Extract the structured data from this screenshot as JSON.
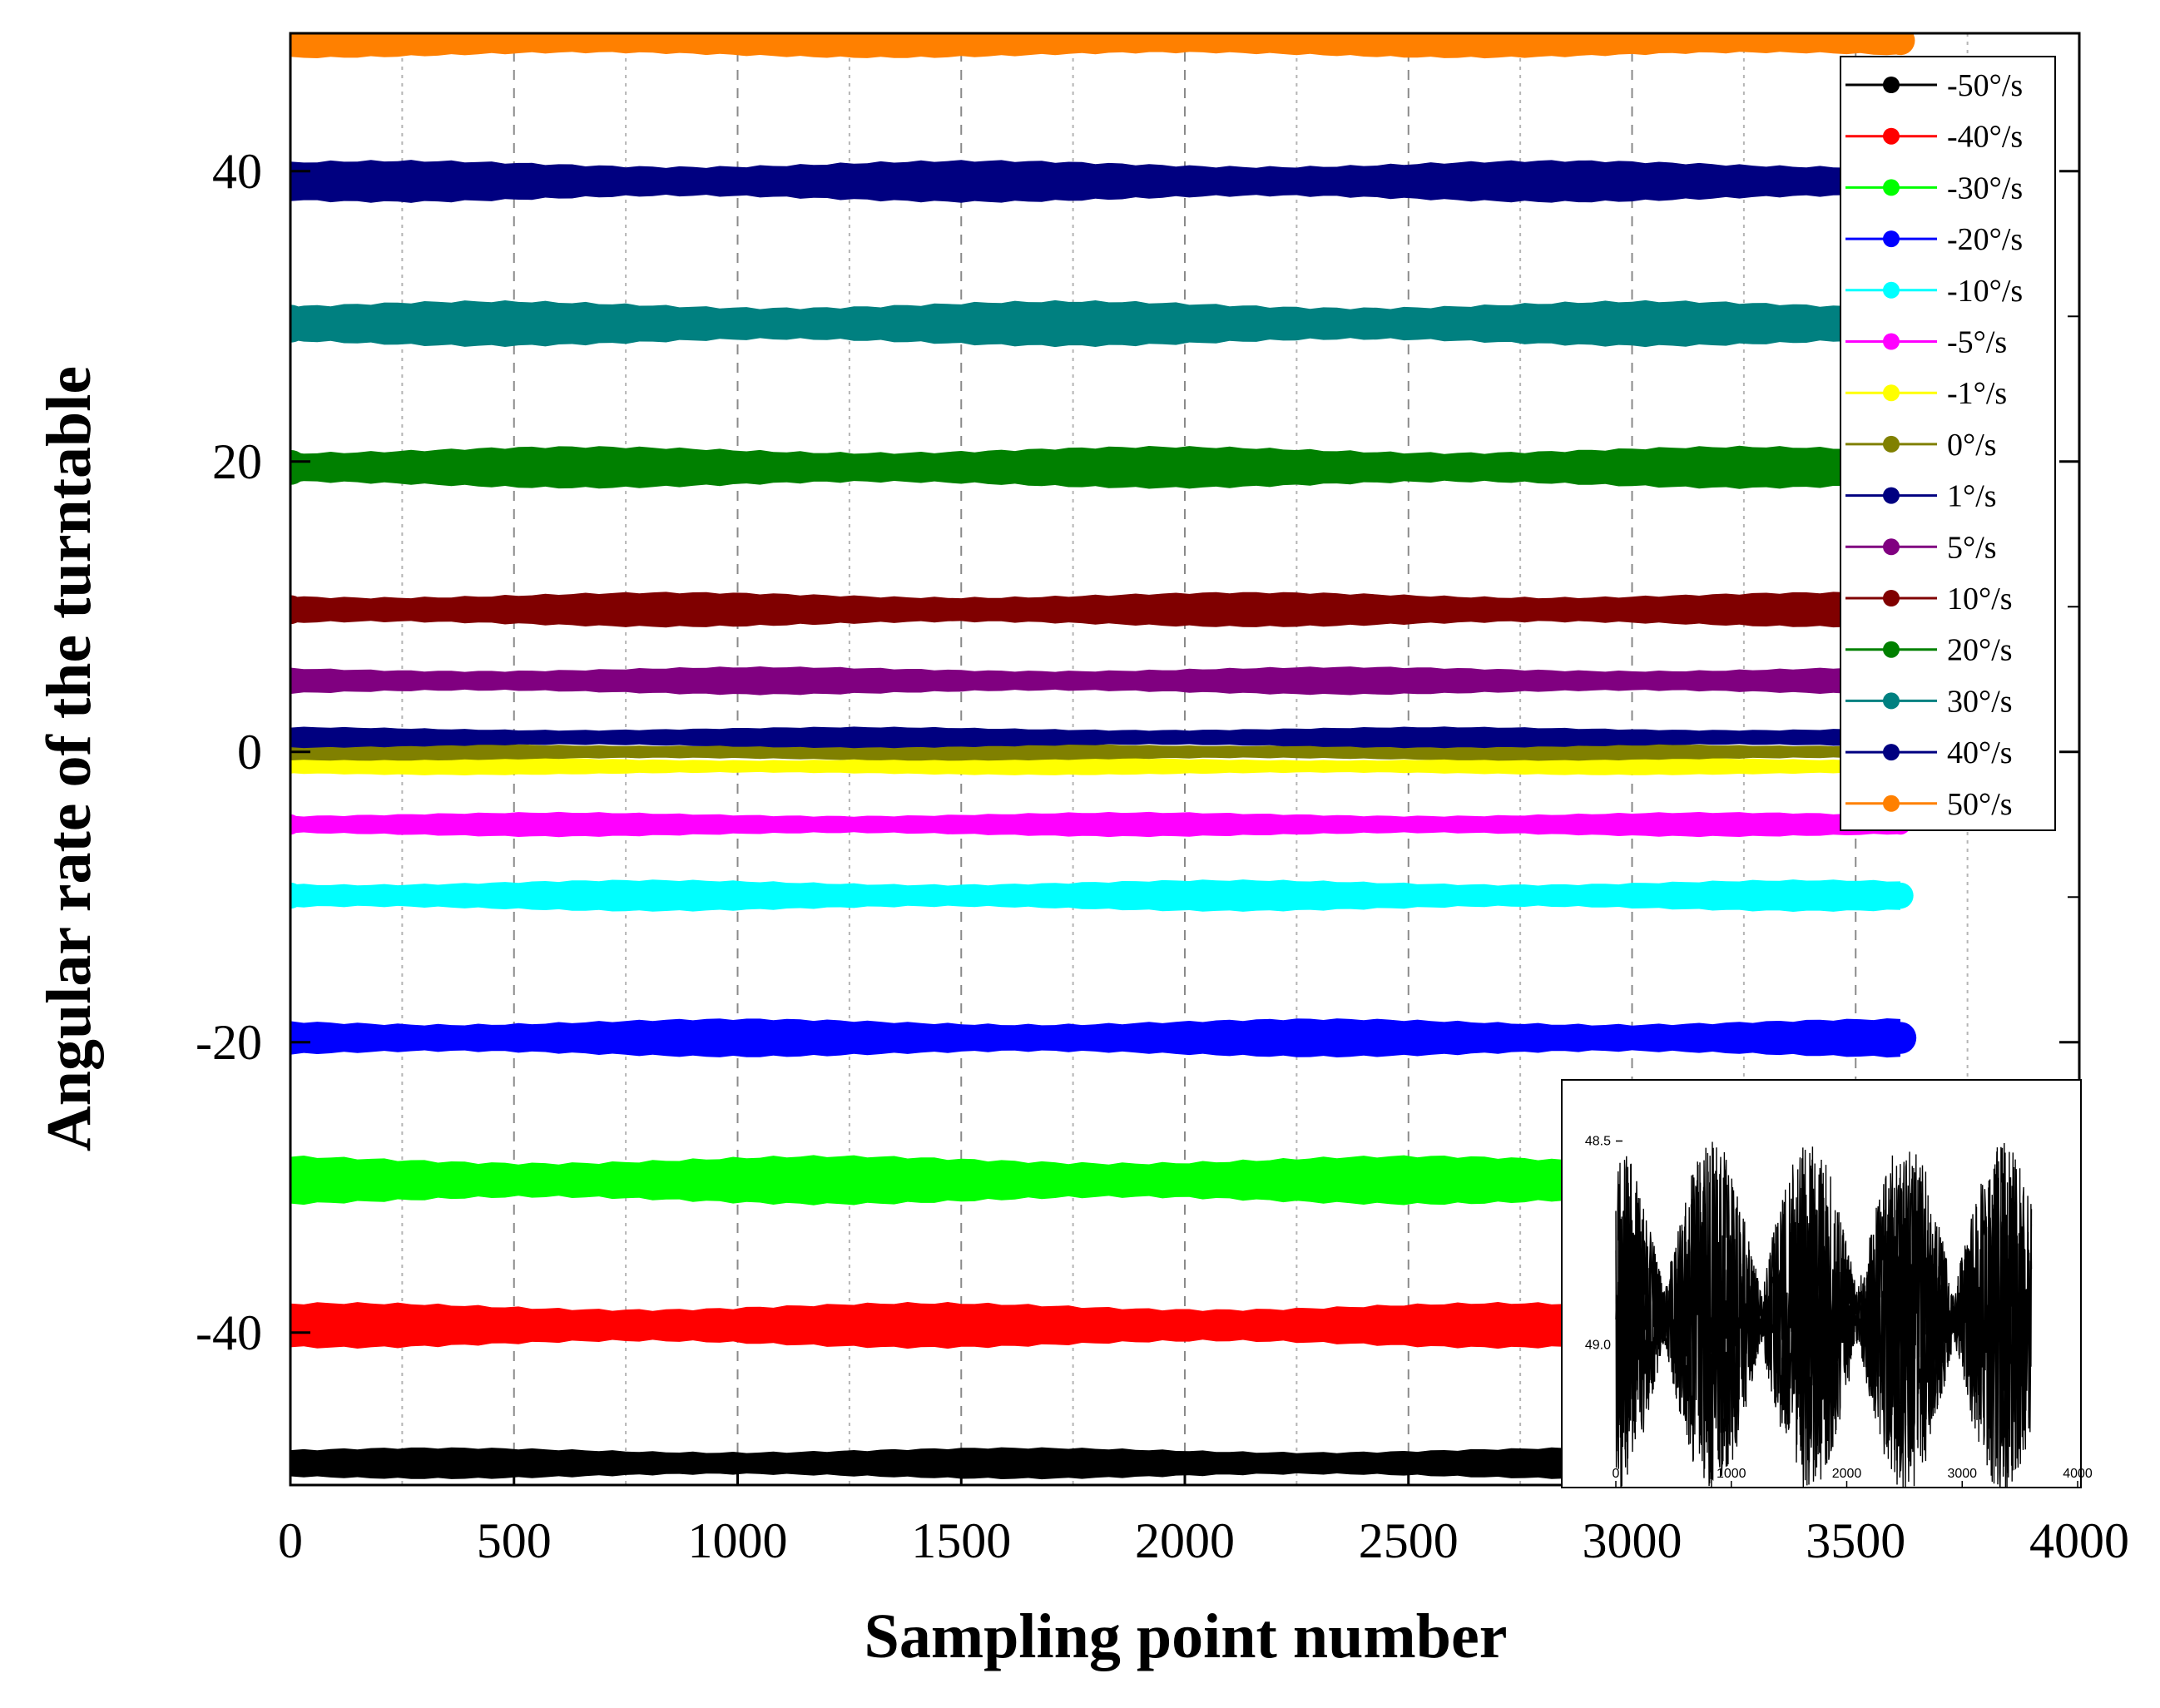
{
  "chart_data": {
    "type": "scatter",
    "title": "",
    "xlabel": "Sampling point number",
    "ylabel": "Angular rate of the turntable",
    "xlim": [
      0,
      4000
    ],
    "ylim": [
      -50.5,
      49.5
    ],
    "xticks": [
      "0",
      "500",
      "1000",
      "1500",
      "2000",
      "2500",
      "3000",
      "3500",
      "4000"
    ],
    "yticks": [
      "-40",
      "-20",
      "0",
      "20",
      "40"
    ],
    "grid": "vertical dashed",
    "legend_position": "top-right",
    "sample_count": 3600,
    "series": [
      {
        "name": "-50°/s",
        "value": -49,
        "spread": 0.9,
        "color": "#000000"
      },
      {
        "name": "-40°/s",
        "value": -39.5,
        "spread": 1.3,
        "color": "#ff0000"
      },
      {
        "name": "-30°/s",
        "value": -29.5,
        "spread": 1.4,
        "color": "#00ff00"
      },
      {
        "name": "-20°/s",
        "value": -19.7,
        "spread": 1.1,
        "color": "#0000ff"
      },
      {
        "name": "-10°/s",
        "value": -9.9,
        "spread": 0.9,
        "color": "#00ffff"
      },
      {
        "name": "-5°/s",
        "value": -5,
        "spread": 0.7,
        "color": "#ff00ff"
      },
      {
        "name": "-1°/s",
        "value": -1,
        "spread": 0.5,
        "color": "#ffff00"
      },
      {
        "name": "0°/s",
        "value": 0,
        "spread": 0.5,
        "color": "#808000"
      },
      {
        "name": "1°/s",
        "value": 1,
        "spread": 0.6,
        "color": "#000080"
      },
      {
        "name": "5°/s",
        "value": 4.9,
        "spread": 0.8,
        "color": "#800080"
      },
      {
        "name": "10°/s",
        "value": 9.8,
        "spread": 1.0,
        "color": "#800000"
      },
      {
        "name": "20°/s",
        "value": 19.6,
        "spread": 1.2,
        "color": "#008000"
      },
      {
        "name": "30°/s",
        "value": 29.5,
        "spread": 1.3,
        "color": "#008080"
      },
      {
        "name": "40°/s",
        "value": 39.3,
        "spread": 1.2,
        "color": "#000080"
      },
      {
        "name": "50°/s",
        "value": 49,
        "spread": 1.0,
        "color": "#ff8000"
      }
    ],
    "inset": {
      "type": "scatter",
      "series_name": "-50°/s",
      "color": "#000000",
      "xlim": [
        0,
        4000
      ],
      "ylim": [
        -49.35,
        -48.35
      ],
      "xticks": [
        "0",
        "1000",
        "2000",
        "3000",
        "4000"
      ],
      "yticks": [
        {
          "value": -48.5,
          "label": "48.5"
        },
        {
          "value": -49.0,
          "label": "49.0"
        }
      ],
      "sample_count": 3600,
      "center": -48.93,
      "amplitude": 0.37,
      "periods": 4.3
    }
  }
}
